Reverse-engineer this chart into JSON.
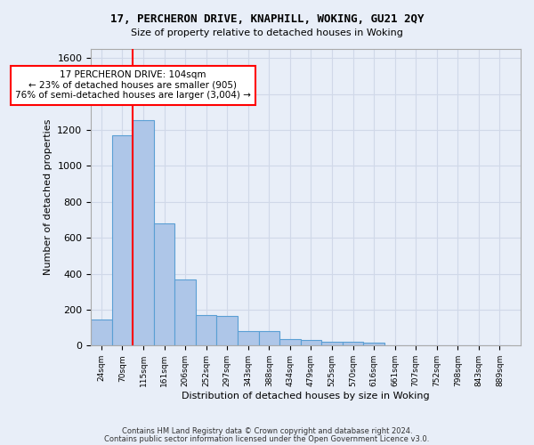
{
  "title1": "17, PERCHERON DRIVE, KNAPHILL, WOKING, GU21 2QY",
  "title2": "Size of property relative to detached houses in Woking",
  "xlabel": "Distribution of detached houses by size in Woking",
  "ylabel": "Number of detached properties",
  "bar_values": [
    145,
    1170,
    1255,
    680,
    370,
    170,
    165,
    80,
    80,
    35,
    30,
    20,
    20,
    15,
    0,
    0,
    0,
    0,
    0,
    0
  ],
  "bin_labels": [
    "24sqm",
    "70sqm",
    "115sqm",
    "161sqm",
    "206sqm",
    "252sqm",
    "297sqm",
    "343sqm",
    "388sqm",
    "434sqm",
    "479sqm",
    "525sqm",
    "570sqm",
    "616sqm",
    "661sqm",
    "707sqm",
    "752sqm",
    "798sqm",
    "843sqm",
    "889sqm"
  ],
  "bar_color": "#aec6e8",
  "bar_edge_color": "#5a9fd4",
  "vline_x_idx": 1.5,
  "vline_color": "red",
  "annotation_text": "17 PERCHERON DRIVE: 104sqm\n← 23% of detached houses are smaller (905)\n76% of semi-detached houses are larger (3,004) →",
  "annotation_box_color": "white",
  "annotation_box_edge": "red",
  "ylim": [
    0,
    1650
  ],
  "yticks": [
    0,
    200,
    400,
    600,
    800,
    1000,
    1200,
    1400,
    1600
  ],
  "grid_color": "#d0d8e8",
  "bg_color": "#e8eef8",
  "footer1": "Contains HM Land Registry data © Crown copyright and database right 2024.",
  "footer2": "Contains public sector information licensed under the Open Government Licence v3.0."
}
